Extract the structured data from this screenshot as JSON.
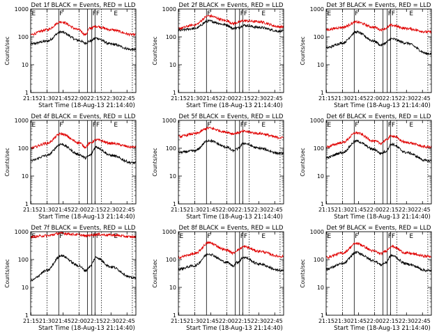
{
  "figure": {
    "colors": {
      "events": "#000000",
      "lld": "#e00000",
      "axes": "#000000",
      "markers": "#000000"
    }
  },
  "chart_data": [
    {
      "type": "line",
      "title": "Det 1f BLACK = Events, RED = LLD",
      "xlabel": "Start Time (18-Aug-13 21:14:40)",
      "ylabel": "Counts/sec",
      "xlim": [
        "21:14:40",
        "22:53:20"
      ],
      "ylim": [
        1,
        1000
      ],
      "yscale": "log",
      "grid": false,
      "xticks": [
        "21:15",
        "21:30",
        "21:45",
        "22:00",
        "22:15",
        "22:30",
        "22:45"
      ],
      "yticks": [
        "1",
        "10",
        "100",
        "1000"
      ],
      "dashed_lines": [
        "21:30",
        "22:00",
        "22:21",
        "22:50"
      ],
      "solid_lines": [
        "21:41",
        "22:08",
        "22:12",
        "22:15"
      ],
      "region_labels": [
        {
          "label": "E",
          "time": "21:15"
        },
        {
          "label": "F",
          "time": "21:41"
        },
        {
          "label": "FF",
          "time": "22:12"
        },
        {
          "label": "E",
          "time": "22:32"
        }
      ],
      "x": [
        "21:14",
        "21:30",
        "21:43",
        "22:00",
        "22:06",
        "22:10",
        "22:16",
        "22:30",
        "22:50"
      ],
      "series": [
        {
          "name": "Events",
          "values": [
            55,
            70,
            150,
            75,
            60,
            70,
            90,
            55,
            35
          ]
        },
        {
          "name": "LLD",
          "values": [
            120,
            180,
            350,
            180,
            120,
            200,
            240,
            180,
            120
          ]
        }
      ]
    },
    {
      "type": "line",
      "title": "Det 2f BLACK = Events, RED = LLD",
      "xlabel": "Start Time (18-Aug-13 21:14:40)",
      "ylabel": "Counts/sec",
      "xlim": [
        "21:14:40",
        "22:53:20"
      ],
      "ylim": [
        1,
        1000
      ],
      "yscale": "log",
      "grid": false,
      "xticks": [
        "21:15",
        "21:30",
        "21:45",
        "22:00",
        "22:15",
        "22:30",
        "22:45"
      ],
      "yticks": [
        "1",
        "10",
        "100",
        "1000"
      ],
      "dashed_lines": [
        "21:30",
        "22:00",
        "22:21",
        "22:50"
      ],
      "solid_lines": [
        "21:41",
        "22:08",
        "22:12",
        "22:15"
      ],
      "region_labels": [
        {
          "label": "F",
          "time": "21:41"
        },
        {
          "label": "FF",
          "time": "22:12"
        },
        {
          "label": "E",
          "time": "22:32"
        }
      ],
      "x": [
        "21:14",
        "21:30",
        "21:43",
        "22:00",
        "22:06",
        "22:10",
        "22:16",
        "22:30",
        "22:50"
      ],
      "series": [
        {
          "name": "Events",
          "values": [
            170,
            200,
            370,
            270,
            200,
            210,
            260,
            220,
            160
          ]
        },
        {
          "name": "LLD",
          "values": [
            200,
            270,
            570,
            380,
            300,
            330,
            380,
            350,
            230
          ]
        }
      ]
    },
    {
      "type": "line",
      "title": "Det 3f BLACK = Events, RED = LLD",
      "xlabel": "Start Time (18-Aug-13 21:14:40)",
      "ylabel": "Counts/sec",
      "xlim": [
        "21:14:40",
        "22:53:20"
      ],
      "ylim": [
        1,
        1000
      ],
      "yscale": "log",
      "grid": false,
      "xticks": [
        "21:15",
        "21:30",
        "21:45",
        "22:00",
        "22:15",
        "22:30",
        "22:45"
      ],
      "yticks": [
        "1",
        "10",
        "100",
        "1000"
      ],
      "dashed_lines": [
        "21:30",
        "22:00",
        "22:21",
        "22:50"
      ],
      "solid_lines": [
        "21:41",
        "22:08",
        "22:12",
        "22:15"
      ],
      "region_labels": [
        {
          "label": "E",
          "time": "21:15"
        },
        {
          "label": "F",
          "time": "21:41"
        },
        {
          "label": "FF",
          "time": "22:12"
        },
        {
          "label": "E",
          "time": "22:32"
        }
      ],
      "x": [
        "21:14",
        "21:30",
        "21:43",
        "22:00",
        "22:06",
        "22:10",
        "22:16",
        "22:30",
        "22:50"
      ],
      "series": [
        {
          "name": "Events",
          "values": [
            40,
            60,
            150,
            70,
            50,
            60,
            85,
            60,
            25
          ]
        },
        {
          "name": "LLD",
          "values": [
            180,
            220,
            340,
            220,
            180,
            200,
            260,
            200,
            150
          ]
        }
      ]
    },
    {
      "type": "line",
      "title": "Det 4f BLACK = Events, RED = LLD",
      "xlabel": "Start Time (18-Aug-13 21:14:40)",
      "ylabel": "Counts/sec",
      "xlim": [
        "21:14:40",
        "22:53:20"
      ],
      "ylim": [
        1,
        1000
      ],
      "yscale": "log",
      "grid": false,
      "xticks": [
        "21:15",
        "21:30",
        "21:45",
        "22:00",
        "22:15",
        "22:30",
        "22:45"
      ],
      "yticks": [
        "1",
        "10",
        "100",
        "1000"
      ],
      "dashed_lines": [
        "21:30",
        "22:00",
        "22:21",
        "22:50"
      ],
      "solid_lines": [
        "21:41",
        "22:08",
        "22:12",
        "22:15"
      ],
      "region_labels": [
        {
          "label": "E",
          "time": "21:15"
        },
        {
          "label": "F",
          "time": "21:41"
        },
        {
          "label": "FF",
          "time": "22:12"
        },
        {
          "label": "E",
          "time": "22:32"
        }
      ],
      "x": [
        "21:14",
        "21:30",
        "21:43",
        "22:00",
        "22:06",
        "22:10",
        "22:16",
        "22:30",
        "22:50"
      ],
      "series": [
        {
          "name": "Events",
          "values": [
            35,
            55,
            140,
            60,
            45,
            55,
            110,
            55,
            30
          ]
        },
        {
          "name": "LLD",
          "values": [
            100,
            150,
            330,
            160,
            110,
            150,
            200,
            150,
            110
          ]
        }
      ]
    },
    {
      "type": "line",
      "title": "Det 5f BLACK = Events, RED = LLD",
      "xlabel": "Start Time (18-Aug-13 21:14:40)",
      "ylabel": "Counts/sec",
      "xlim": [
        "21:14:40",
        "22:53:20"
      ],
      "ylim": [
        1,
        1000
      ],
      "yscale": "log",
      "grid": false,
      "xticks": [
        "21:15",
        "21:30",
        "21:45",
        "22:00",
        "22:15",
        "22:30",
        "22:45"
      ],
      "yticks": [
        "1",
        "10",
        "100",
        "1000"
      ],
      "dashed_lines": [
        "21:30",
        "22:00",
        "22:21",
        "22:50"
      ],
      "solid_lines": [
        "21:41",
        "22:08",
        "22:12",
        "22:15"
      ],
      "region_labels": [
        {
          "label": "F",
          "time": "21:41"
        },
        {
          "label": "FF",
          "time": "22:12"
        },
        {
          "label": "E",
          "time": "22:32"
        }
      ],
      "x": [
        "21:14",
        "21:30",
        "21:43",
        "22:00",
        "22:06",
        "22:10",
        "22:16",
        "22:30",
        "22:50"
      ],
      "series": [
        {
          "name": "Events",
          "values": [
            70,
            80,
            190,
            110,
            80,
            95,
            150,
            100,
            65
          ]
        },
        {
          "name": "LLD",
          "values": [
            260,
            330,
            530,
            380,
            330,
            360,
            400,
            340,
            240
          ]
        }
      ]
    },
    {
      "type": "line",
      "title": "Det 6f BLACK = Events, RED = LLD",
      "xlabel": "Start Time (18-Aug-13 21:14:40)",
      "ylabel": "Counts/sec",
      "xlim": [
        "21:14:40",
        "22:53:20"
      ],
      "ylim": [
        1,
        1000
      ],
      "yscale": "log",
      "grid": false,
      "xticks": [
        "21:15",
        "21:30",
        "21:45",
        "22:00",
        "22:15",
        "22:30",
        "22:45"
      ],
      "yticks": [
        "1",
        "10",
        "100",
        "1000"
      ],
      "dashed_lines": [
        "21:30",
        "22:00",
        "22:21",
        "22:50"
      ],
      "solid_lines": [
        "21:41",
        "22:08",
        "22:12",
        "22:15"
      ],
      "region_labels": [
        {
          "label": "E",
          "time": "21:15"
        },
        {
          "label": "F",
          "time": "21:41"
        },
        {
          "label": "FF",
          "time": "22:12"
        },
        {
          "label": "E",
          "time": "22:32"
        }
      ],
      "x": [
        "21:14",
        "21:30",
        "21:43",
        "22:00",
        "22:06",
        "22:10",
        "22:16",
        "22:30",
        "22:50"
      ],
      "series": [
        {
          "name": "Events",
          "values": [
            45,
            70,
            180,
            90,
            65,
            75,
            140,
            70,
            35
          ]
        },
        {
          "name": "LLD",
          "values": [
            110,
            160,
            360,
            180,
            150,
            190,
            280,
            160,
            110
          ]
        }
      ]
    },
    {
      "type": "line",
      "title": "Det 7f BLACK = Events, RED = LLD",
      "xlabel": "Start Time (18-Aug-13 21:14:40)",
      "ylabel": "Counts/sec",
      "xlim": [
        "21:14:40",
        "22:53:20"
      ],
      "ylim": [
        1,
        1000
      ],
      "yscale": "log",
      "grid": false,
      "xticks": [
        "21:15",
        "21:30",
        "21:45",
        "22:00",
        "22:15",
        "22:30",
        "22:45"
      ],
      "yticks": [
        "1",
        "10",
        "100",
        "1000"
      ],
      "dashed_lines": [
        "21:30",
        "22:00",
        "22:21",
        "22:50"
      ],
      "solid_lines": [
        "21:41",
        "22:08",
        "22:12",
        "22:15"
      ],
      "region_labels": [
        {
          "label": "E",
          "time": "21:15"
        },
        {
          "label": "F",
          "time": "21:41"
        },
        {
          "label": "FF",
          "time": "22:12"
        },
        {
          "label": "E",
          "time": "22:32"
        }
      ],
      "x": [
        "21:14",
        "21:30",
        "21:43",
        "22:00",
        "22:06",
        "22:10",
        "22:16",
        "22:30",
        "22:50"
      ],
      "series": [
        {
          "name": "Events",
          "values": [
            17,
            40,
            140,
            60,
            40,
            55,
            120,
            55,
            22
          ]
        },
        {
          "name": "LLD",
          "values": [
            650,
            720,
            880,
            780,
            700,
            750,
            800,
            760,
            650
          ]
        }
      ]
    },
    {
      "type": "line",
      "title": "Det 8f BLACK = Events, RED = LLD",
      "xlabel": "Start Time (18-Aug-13 21:14:40)",
      "ylabel": "Counts/sec",
      "xlim": [
        "21:14:40",
        "22:53:20"
      ],
      "ylim": [
        1,
        1000
      ],
      "yscale": "log",
      "grid": false,
      "xticks": [
        "21:15",
        "21:30",
        "21:45",
        "22:00",
        "22:15",
        "22:30",
        "22:45"
      ],
      "yticks": [
        "1",
        "10",
        "100",
        "1000"
      ],
      "dashed_lines": [
        "21:30",
        "22:00",
        "22:21",
        "22:50"
      ],
      "solid_lines": [
        "21:41",
        "22:08",
        "22:12",
        "22:15"
      ],
      "region_labels": [
        {
          "label": "E",
          "time": "21:15"
        },
        {
          "label": "F",
          "time": "21:41"
        },
        {
          "label": "FF",
          "time": "22:12"
        },
        {
          "label": "E",
          "time": "22:32"
        }
      ],
      "x": [
        "21:14",
        "21:30",
        "21:43",
        "22:00",
        "22:06",
        "22:10",
        "22:16",
        "22:30",
        "22:50"
      ],
      "series": [
        {
          "name": "Events",
          "values": [
            45,
            60,
            160,
            80,
            60,
            80,
            120,
            70,
            40
          ]
        },
        {
          "name": "LLD",
          "values": [
            120,
            160,
            400,
            220,
            170,
            220,
            290,
            200,
            130
          ]
        }
      ]
    },
    {
      "type": "line",
      "title": "Det 9f BLACK = Events, RED = LLD",
      "xlabel": "Start Time (18-Aug-13 21:14:40)",
      "ylabel": "Counts/sec",
      "xlim": [
        "21:14:40",
        "22:53:20"
      ],
      "ylim": [
        1,
        1000
      ],
      "yscale": "log",
      "grid": false,
      "xticks": [
        "21:15",
        "21:30",
        "21:45",
        "22:00",
        "22:15",
        "22:30",
        "22:45"
      ],
      "yticks": [
        "1",
        "10",
        "100",
        "1000"
      ],
      "dashed_lines": [
        "21:30",
        "22:00",
        "22:21",
        "22:50"
      ],
      "solid_lines": [
        "21:41",
        "22:08",
        "22:12",
        "22:15"
      ],
      "region_labels": [
        {
          "label": "E",
          "time": "21:15"
        },
        {
          "label": "F",
          "time": "21:41"
        },
        {
          "label": "FF",
          "time": "22:12"
        },
        {
          "label": "E",
          "time": "22:32"
        }
      ],
      "x": [
        "21:14",
        "21:30",
        "21:43",
        "22:00",
        "22:06",
        "22:10",
        "22:16",
        "22:30",
        "22:50"
      ],
      "series": [
        {
          "name": "Events",
          "values": [
            45,
            70,
            180,
            90,
            65,
            75,
            140,
            70,
            40
          ]
        },
        {
          "name": "LLD",
          "values": [
            120,
            170,
            380,
            200,
            160,
            200,
            300,
            170,
            130
          ]
        }
      ]
    }
  ]
}
